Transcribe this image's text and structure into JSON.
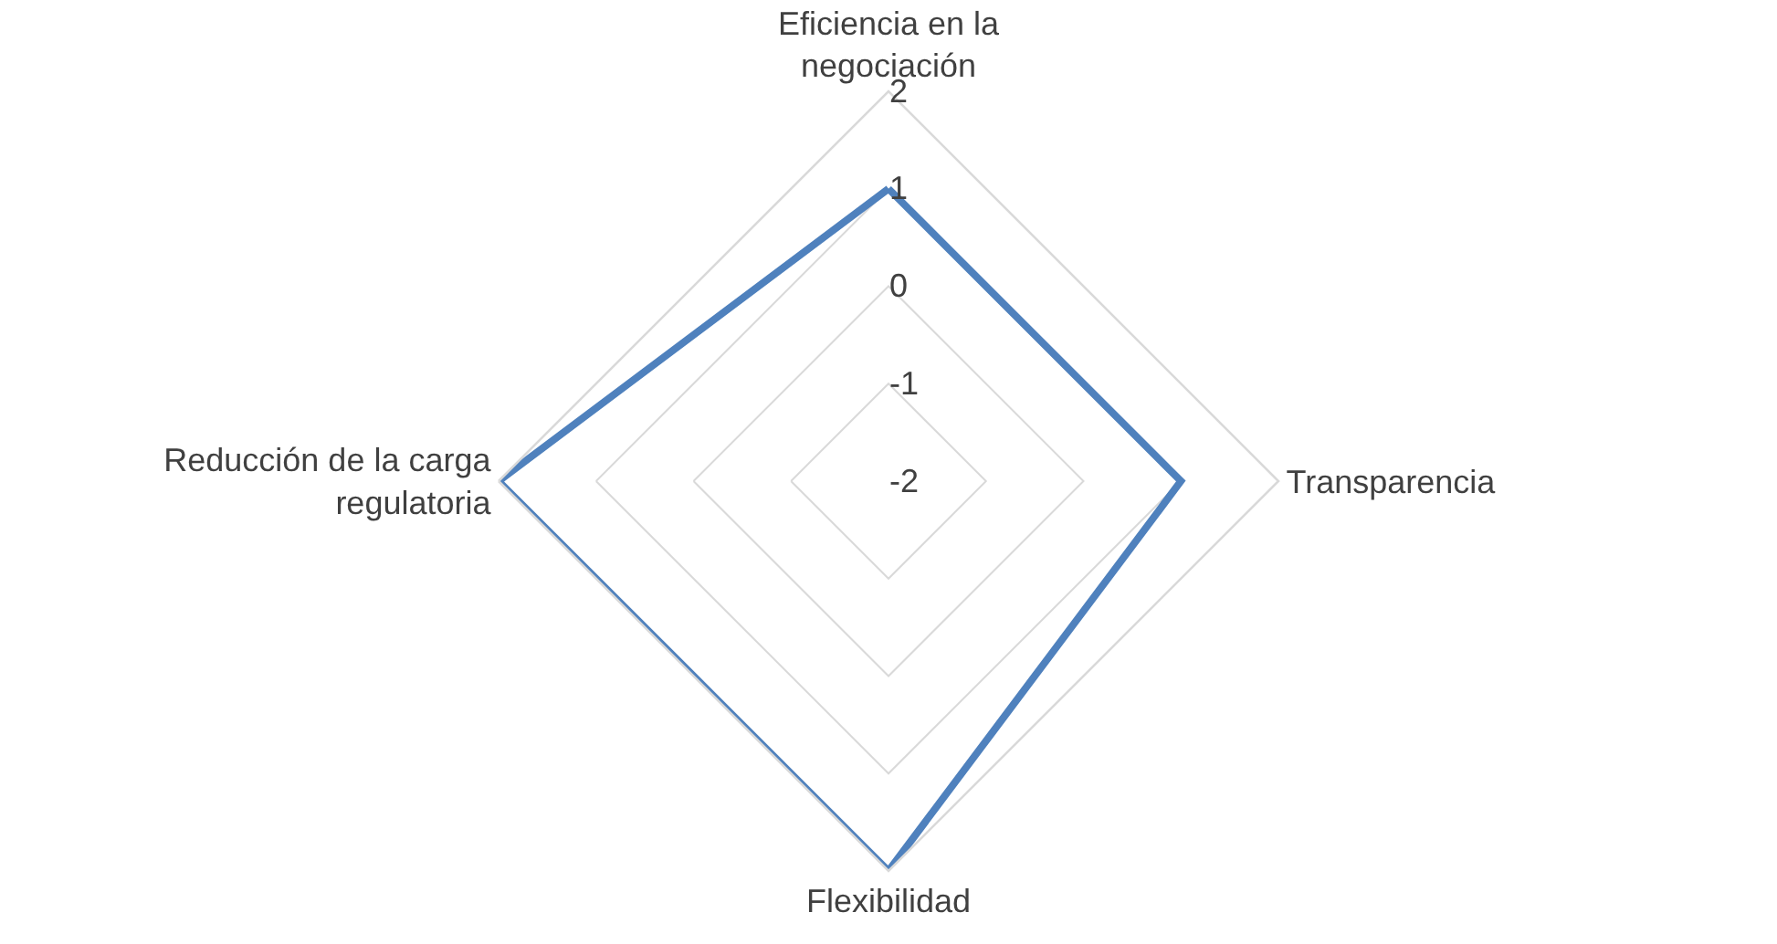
{
  "chart_data": {
    "type": "radar",
    "categories": [
      "Eficiencia en la negociación",
      "Transparencia",
      "Flexibilidad",
      "Reducción de la carga regulatoria"
    ],
    "series": [
      {
        "color": "#4f81bd",
        "values": [
          1,
          1,
          2,
          2
        ]
      }
    ],
    "ylim": [
      -2,
      2
    ],
    "yticks": [
      -2,
      -1,
      0,
      1,
      2
    ],
    "grid": true,
    "marker": "none",
    "line_style": "solid"
  }
}
